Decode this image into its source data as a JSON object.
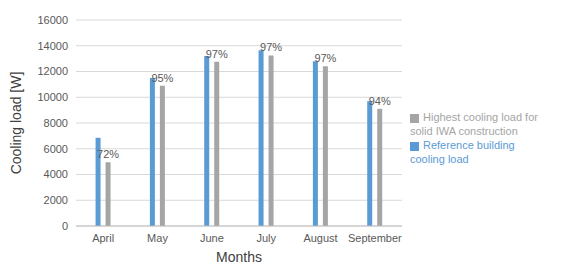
{
  "chart_data": {
    "type": "bar",
    "x_label": "Months",
    "y_label": "Cooling load [W]",
    "categories": [
      "April",
      "May",
      "June",
      "July",
      "August",
      "September"
    ],
    "series": [
      {
        "name": "Reference building cooling load",
        "color": "#5b9bd5",
        "values": [
          6850,
          11500,
          13200,
          13650,
          12800,
          9700
        ]
      },
      {
        "name": "Highest cooling load for solid IWA construction",
        "color": "#a5a5a5",
        "values": [
          4950,
          10900,
          12750,
          13250,
          12400,
          9100
        ],
        "annotations": [
          "72%",
          "95%",
          "97%",
          "97%",
          "97%",
          "94%"
        ]
      }
    ],
    "ylim": [
      0,
      16000
    ],
    "yticks": [
      0,
      2000,
      4000,
      6000,
      8000,
      10000,
      12000,
      14000,
      16000
    ],
    "grid": true,
    "legend": "right"
  }
}
